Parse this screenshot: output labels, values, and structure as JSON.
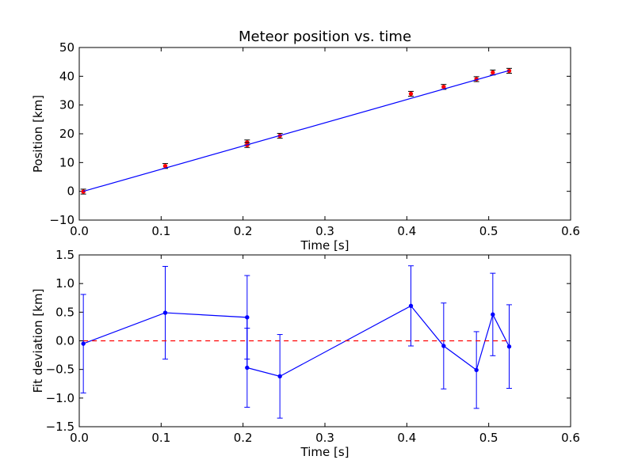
{
  "chart_data": [
    {
      "type": "scatter",
      "title": "Meteor position vs. time",
      "xlabel": "Time [s]",
      "ylabel": "Position [km]",
      "xlim": [
        0.0,
        0.6
      ],
      "ylim": [
        -10,
        50
      ],
      "xticks": [
        "0.0",
        "0.1",
        "0.2",
        "0.3",
        "0.4",
        "0.5",
        "0.6"
      ],
      "yticks": [
        "−10",
        "0",
        "10",
        "20",
        "30",
        "40",
        "50"
      ],
      "grid": false,
      "colors": {
        "points": "#ff0000",
        "fit": "#0000ff",
        "errorbars": "#000000"
      },
      "series": [
        {
          "kind": "points_with_errorbars",
          "x": [
            0.005,
            0.105,
            0.205,
            0.205,
            0.245,
            0.405,
            0.445,
            0.485,
            0.505,
            0.525
          ],
          "y": [
            -0.1,
            8.8,
            17.0,
            16.1,
            19.3,
            33.9,
            36.3,
            39.0,
            41.3,
            41.9
          ],
          "yerr": [
            0.85,
            0.85,
            0.85,
            0.85,
            0.85,
            0.85,
            0.85,
            0.85,
            0.85,
            0.85
          ]
        },
        {
          "kind": "fit_line",
          "x": [
            0.005,
            0.525
          ],
          "y": [
            0.0,
            42.0
          ]
        }
      ]
    },
    {
      "type": "line",
      "title": "",
      "xlabel": "Time [s]",
      "ylabel": "Fit deviation [km]",
      "xlim": [
        0.0,
        0.6
      ],
      "ylim": [
        -1.5,
        1.5
      ],
      "xticks": [
        "0.0",
        "0.1",
        "0.2",
        "0.3",
        "0.4",
        "0.5",
        "0.6"
      ],
      "yticks": [
        "−1.5",
        "−1.0",
        "−0.5",
        "0.0",
        "0.5",
        "1.0",
        "1.5"
      ],
      "grid": false,
      "colors": {
        "series": "#0000ff",
        "reference": "#ff0000"
      },
      "series": [
        {
          "kind": "line_with_errorbars",
          "x": [
            0.005,
            0.105,
            0.205,
            0.205,
            0.245,
            0.405,
            0.445,
            0.485,
            0.505,
            0.525
          ],
          "y": [
            -0.05,
            0.49,
            0.41,
            -0.47,
            -0.62,
            0.61,
            -0.09,
            -0.51,
            0.46,
            -0.1
          ],
          "yerr": [
            0.86,
            0.81,
            0.73,
            0.69,
            0.73,
            0.7,
            0.75,
            0.67,
            0.72,
            0.73
          ]
        },
        {
          "kind": "reference_line",
          "x": [
            0.005,
            0.525
          ],
          "y": [
            0.0,
            0.0
          ],
          "style": "dashed"
        }
      ]
    }
  ]
}
